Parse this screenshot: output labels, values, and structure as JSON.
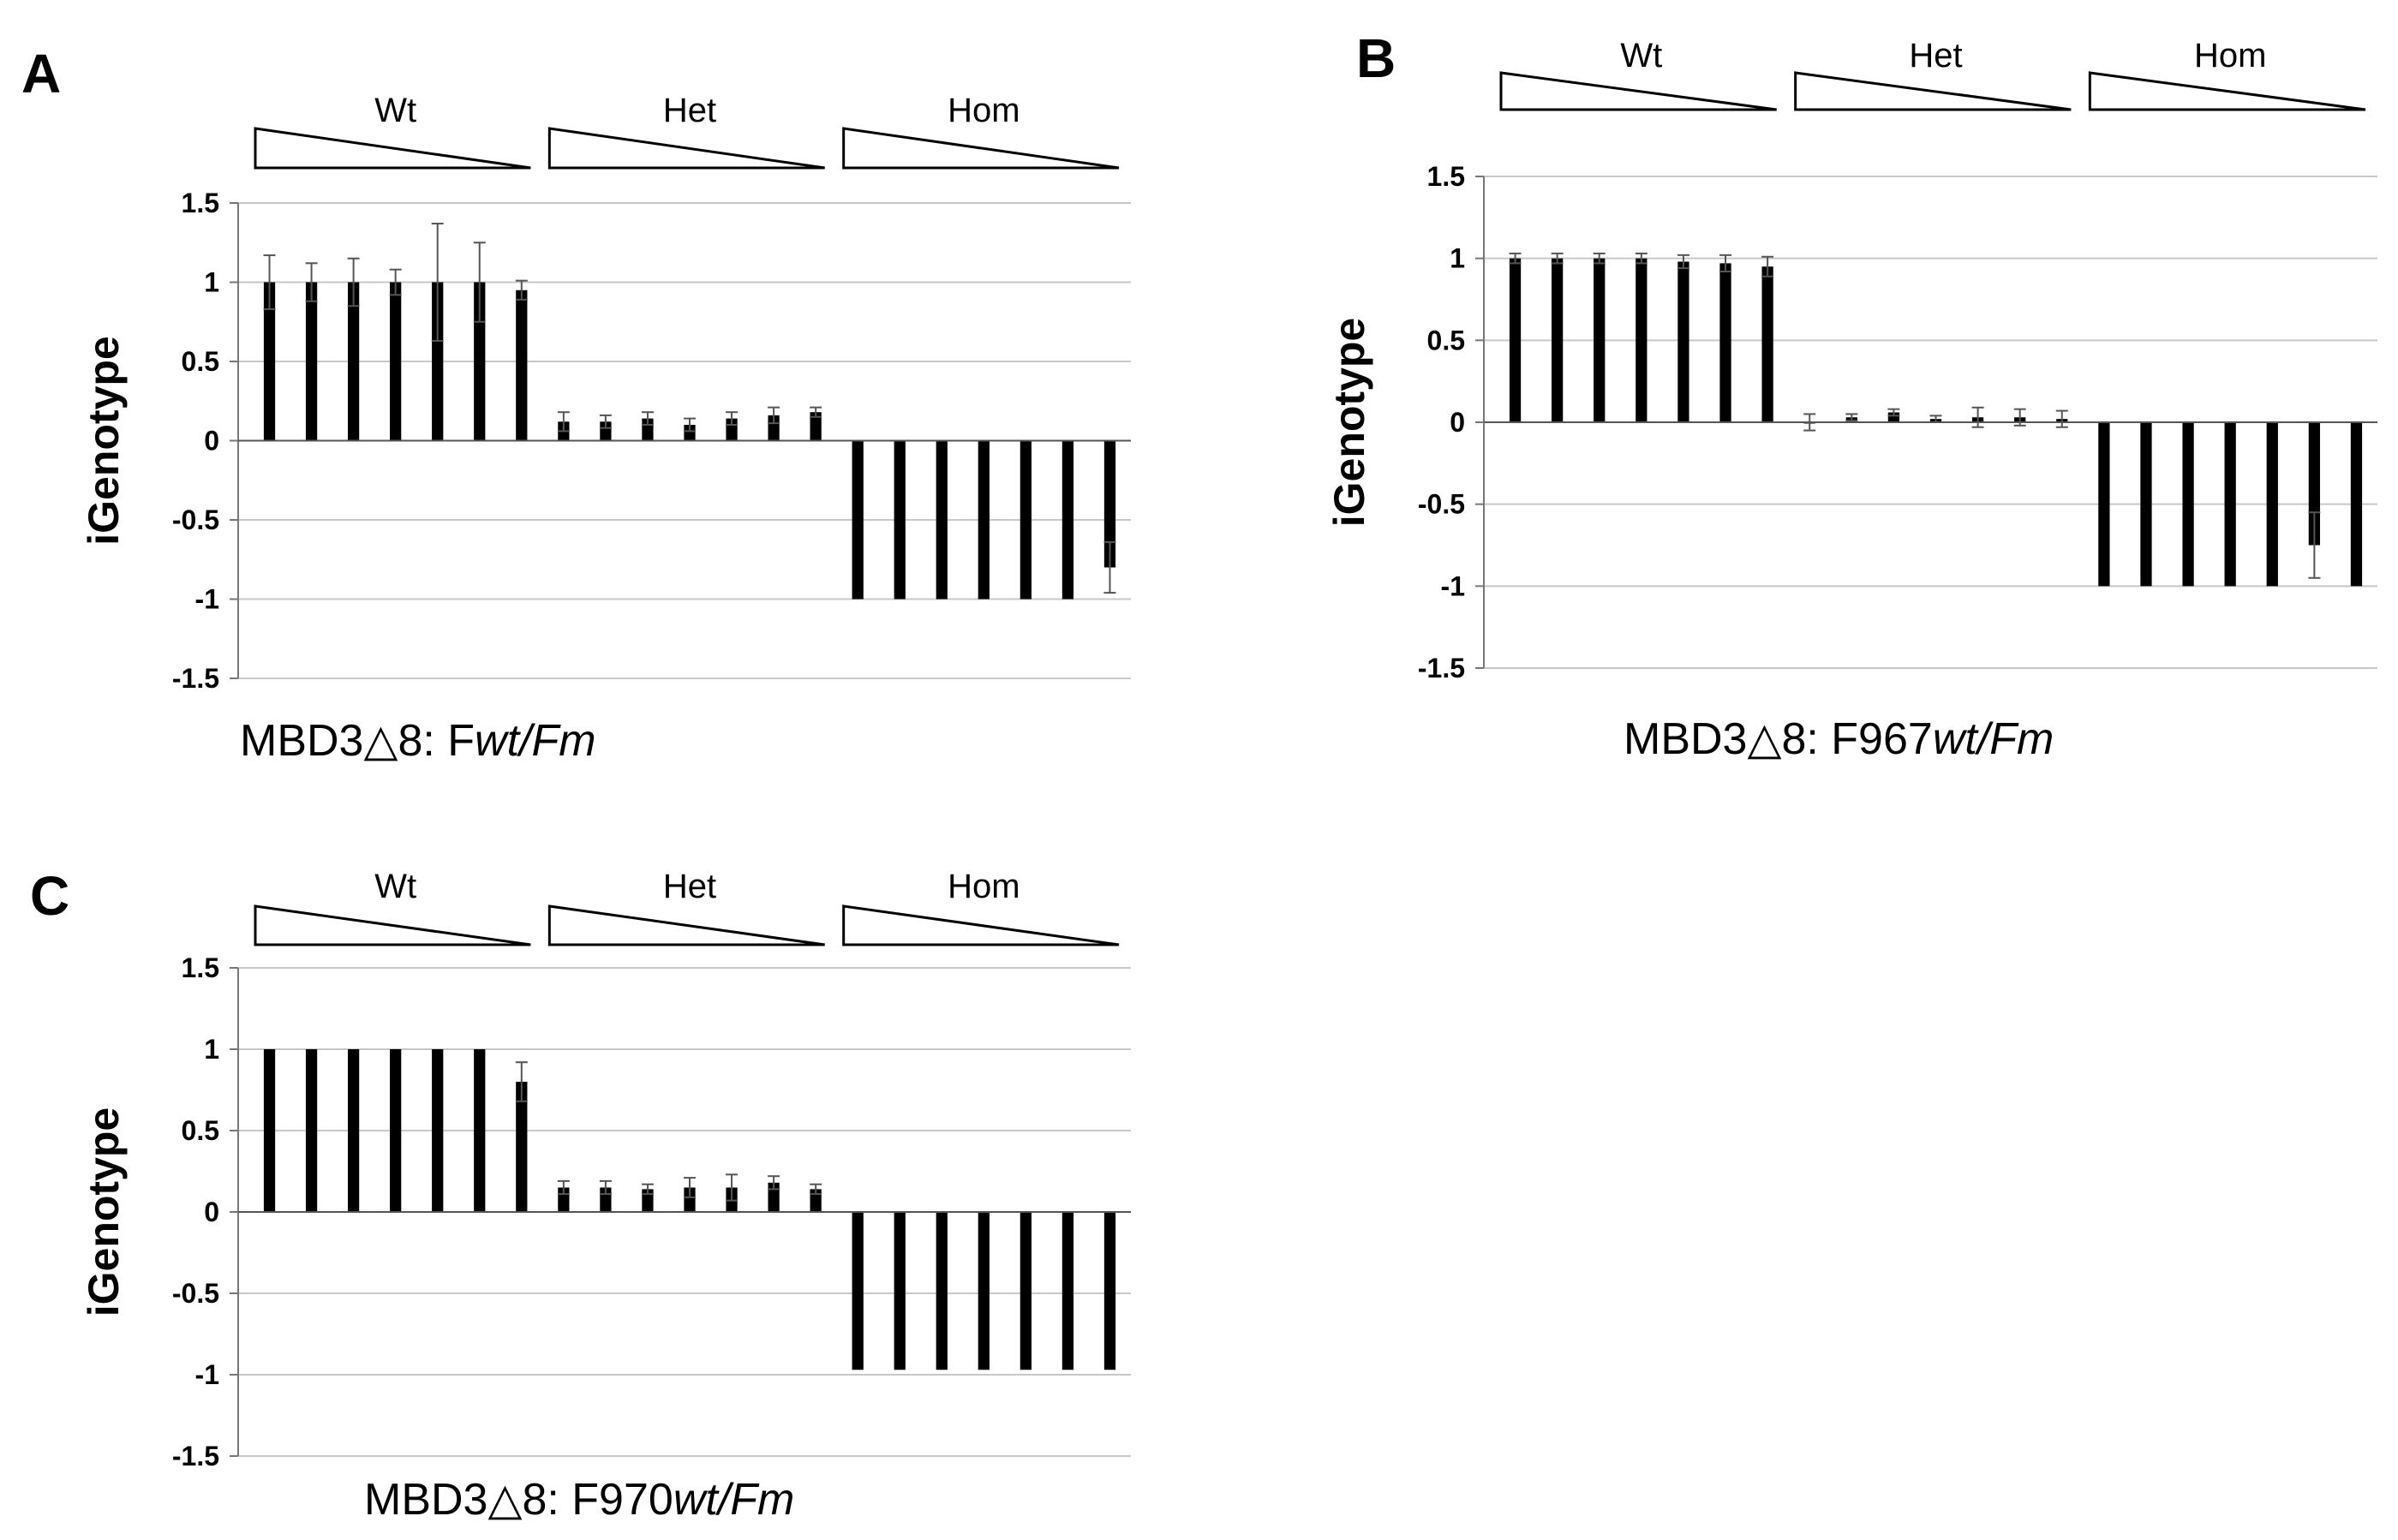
{
  "chart_data": [
    {
      "panel": "A",
      "type": "bar",
      "ylabel": "iGenotype",
      "title_parts": [
        "MBD3△8: F",
        "wt/Fm",
        ""
      ],
      "title_style": [
        "normal",
        "italic",
        "normal"
      ],
      "ylim": [
        -1.5,
        1.5
      ],
      "yticks": [
        "1.5",
        "1",
        "0.5",
        "0",
        "-0.5",
        "-1",
        "-1.5"
      ],
      "grid": true,
      "groups": [
        {
          "label": "Wt",
          "values": [
            1,
            1,
            1,
            1,
            1,
            1,
            0.95
          ],
          "errors": [
            0.17,
            0.12,
            0.15,
            0.08,
            0.37,
            0.25,
            0.06
          ]
        },
        {
          "label": "Het",
          "values": [
            0.12,
            0.12,
            0.14,
            0.1,
            0.14,
            0.16,
            0.18
          ],
          "errors": [
            0.06,
            0.04,
            0.04,
            0.04,
            0.04,
            0.05,
            0.03
          ]
        },
        {
          "label": "Hom",
          "values": [
            -1,
            -1,
            -1,
            -1,
            -1,
            -1,
            -0.8
          ],
          "errors": [
            0,
            0,
            0,
            0,
            0,
            0,
            0.16
          ]
        }
      ]
    },
    {
      "panel": "B",
      "type": "bar",
      "ylabel": "iGenotype",
      "title_parts": [
        "MBD3△8: F967",
        "wt/Fm",
        ""
      ],
      "title_style": [
        "normal",
        "italic",
        "normal"
      ],
      "ylim": [
        -1.5,
        1.5
      ],
      "yticks": [
        "1.5",
        "1",
        "0.5",
        "0",
        "-0.5",
        "-1",
        "-1.5"
      ],
      "grid": true,
      "groups": [
        {
          "label": "Wt",
          "values": [
            1,
            1,
            1,
            1,
            0.98,
            0.97,
            0.95
          ],
          "errors": [
            0.03,
            0.03,
            0.03,
            0.03,
            0.04,
            0.05,
            0.06
          ]
        },
        {
          "label": "Het",
          "values": [
            0,
            0.03,
            0.06,
            0.02,
            0.03,
            0.03,
            0.02
          ],
          "errors": [
            0.05,
            0.02,
            0.02,
            0.02,
            0.06,
            0.05,
            0.05
          ]
        },
        {
          "label": "Hom",
          "values": [
            -1,
            -1,
            -1,
            -1,
            -1,
            -0.75,
            -1
          ],
          "errors": [
            0,
            0,
            0,
            0,
            0,
            0.2,
            0
          ]
        }
      ]
    },
    {
      "panel": "C",
      "type": "bar",
      "ylabel": "iGenotype",
      "title_parts": [
        "MBD3△8: F970",
        "wt/Fm",
        ""
      ],
      "title_style": [
        "normal",
        "italic",
        "normal"
      ],
      "ylim": [
        -1.5,
        1.5
      ],
      "yticks": [
        "1.5",
        "1",
        "0.5",
        "0",
        "-0.5",
        "-1",
        "-1.5"
      ],
      "grid": true,
      "groups": [
        {
          "label": "Wt",
          "values": [
            1,
            1,
            1,
            1,
            1,
            1,
            0.8
          ],
          "errors": [
            0,
            0,
            0,
            0,
            0,
            0,
            0.12
          ]
        },
        {
          "label": "Het",
          "values": [
            0.15,
            0.15,
            0.14,
            0.15,
            0.15,
            0.18,
            0.14
          ],
          "errors": [
            0.04,
            0.04,
            0.03,
            0.06,
            0.08,
            0.04,
            0.03
          ]
        },
        {
          "label": "Hom",
          "values": [
            -0.97,
            -0.97,
            -0.97,
            -0.97,
            -0.97,
            -0.97,
            -0.97
          ],
          "errors": [
            0,
            0,
            0,
            0,
            0,
            0,
            0
          ]
        }
      ]
    }
  ]
}
